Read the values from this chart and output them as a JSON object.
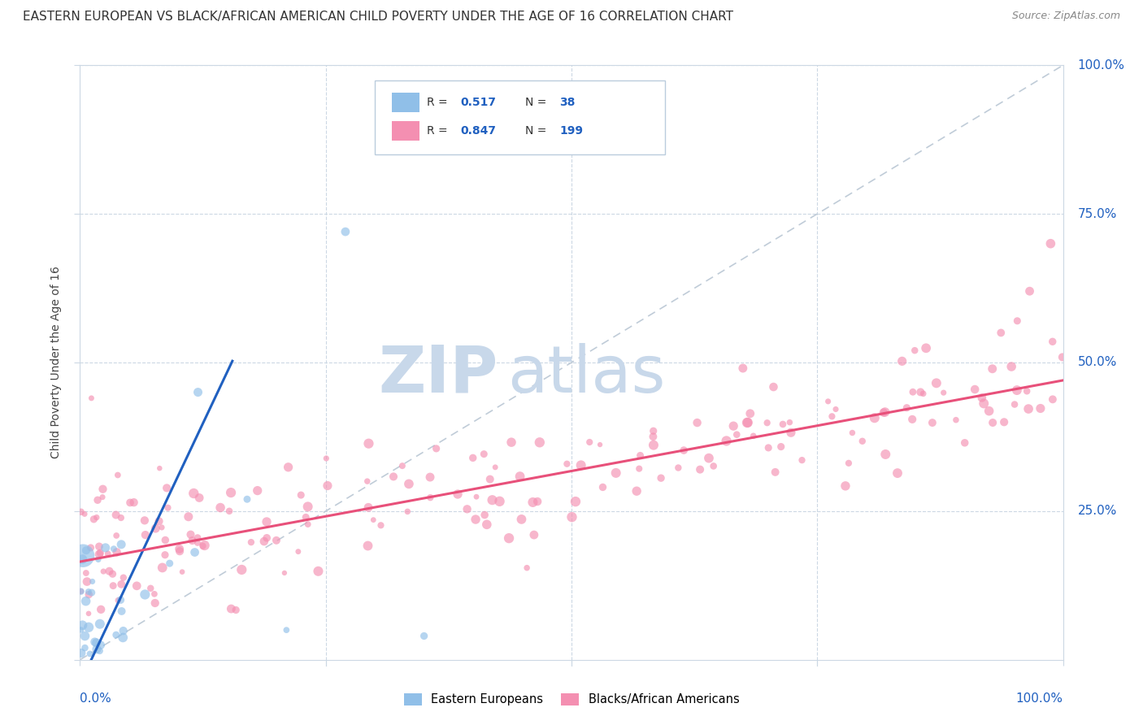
{
  "title": "EASTERN EUROPEAN VS BLACK/AFRICAN AMERICAN CHILD POVERTY UNDER THE AGE OF 16 CORRELATION CHART",
  "source": "Source: ZipAtlas.com",
  "ylabel": "Child Poverty Under the Age of 16",
  "xlim": [
    0,
    1
  ],
  "ylim": [
    0,
    1
  ],
  "xticks": [
    0.0,
    0.25,
    0.5,
    0.75,
    1.0
  ],
  "yticks": [
    0.0,
    0.25,
    0.5,
    0.75,
    1.0
  ],
  "xticklabels_left": "0.0%",
  "xticklabels_right": "100.0%",
  "yticklabels_right": [
    "100.0%",
    "75.0%",
    "50.0%",
    "25.0%"
  ],
  "legend_labels": [
    "Eastern Europeans",
    "Blacks/African Americans"
  ],
  "ee_color": "#90bfe8",
  "baa_color": "#f48fb1",
  "ee_line_color": "#2060c0",
  "baa_line_color": "#e8507a",
  "diag_line_color": "#c0ccd8",
  "watermark_zip": "ZIP",
  "watermark_atlas": "atlas",
  "watermark_color": "#c8d8ea",
  "title_fontsize": 11,
  "axis_label_fontsize": 10,
  "tick_fontsize": 11,
  "ee_R": 0.517,
  "ee_N": 38,
  "baa_R": 0.847,
  "baa_N": 199,
  "value_color": "#2060c0",
  "grid_color": "#ccd8e4",
  "background_color": "#ffffff",
  "title_color": "#333333",
  "source_color": "#888888"
}
